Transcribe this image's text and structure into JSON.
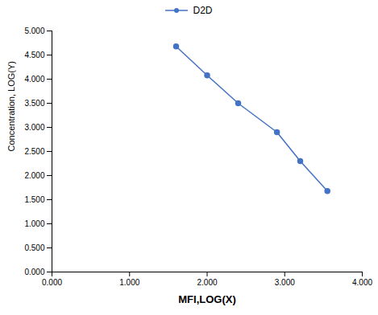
{
  "chart_data": {
    "type": "line",
    "x": [
      1.6,
      2.0,
      2.4,
      2.9,
      3.2,
      3.55
    ],
    "series": [
      {
        "name": "D2D",
        "color": "#4472C4",
        "marker": "circle",
        "values": [
          4.68,
          4.08,
          3.5,
          2.9,
          2.3,
          1.68
        ]
      }
    ],
    "xlabel": "MFI,LOG(X)",
    "ylabel": "Concentration, LOG(Y)",
    "xlim": [
      0.0,
      4.0
    ],
    "ylim": [
      0.0,
      5.0
    ],
    "xticks": [
      {
        "value": 0.0,
        "label": "0.000"
      },
      {
        "value": 1.0,
        "label": "1.000"
      },
      {
        "value": 2.0,
        "label": "2.000"
      },
      {
        "value": 3.0,
        "label": "3.000"
      },
      {
        "value": 4.0,
        "label": "4.000"
      }
    ],
    "yticks": [
      {
        "value": 0.0,
        "label": "0.000"
      },
      {
        "value": 0.5,
        "label": "0.500"
      },
      {
        "value": 1.0,
        "label": "1.000"
      },
      {
        "value": 1.5,
        "label": "1.500"
      },
      {
        "value": 2.0,
        "label": "2.000"
      },
      {
        "value": 2.5,
        "label": "2.500"
      },
      {
        "value": 3.0,
        "label": "3.000"
      },
      {
        "value": 3.5,
        "label": "3.500"
      },
      {
        "value": 4.0,
        "label": "4.000"
      },
      {
        "value": 4.5,
        "label": "4.500"
      },
      {
        "value": 5.0,
        "label": "5.000"
      }
    ],
    "legend": "top",
    "grid": false
  }
}
